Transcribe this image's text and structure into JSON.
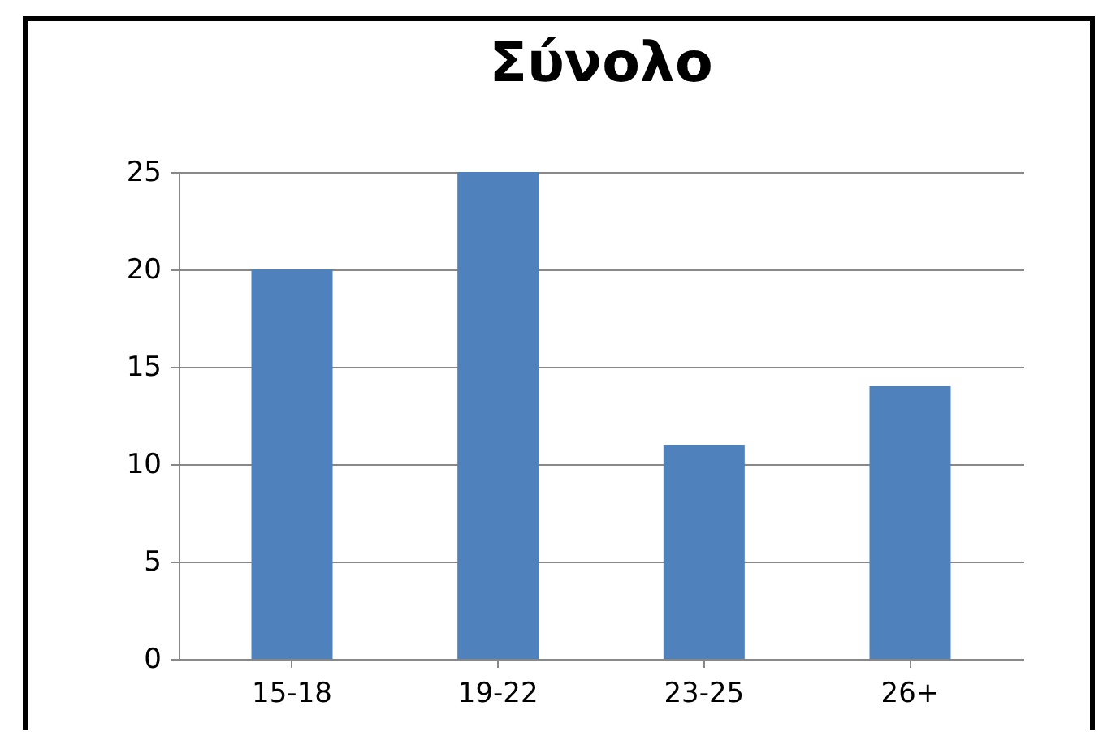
{
  "chart_data": {
    "type": "bar",
    "title": "Σύνολο",
    "categories": [
      "15-18",
      "19-22",
      "23-25",
      "26+"
    ],
    "values": [
      20,
      25,
      11,
      14
    ],
    "color": "#4f81bd",
    "ylim": [
      0,
      25
    ],
    "yticks": [
      0,
      5,
      10,
      15,
      20,
      25
    ],
    "grid": true
  }
}
